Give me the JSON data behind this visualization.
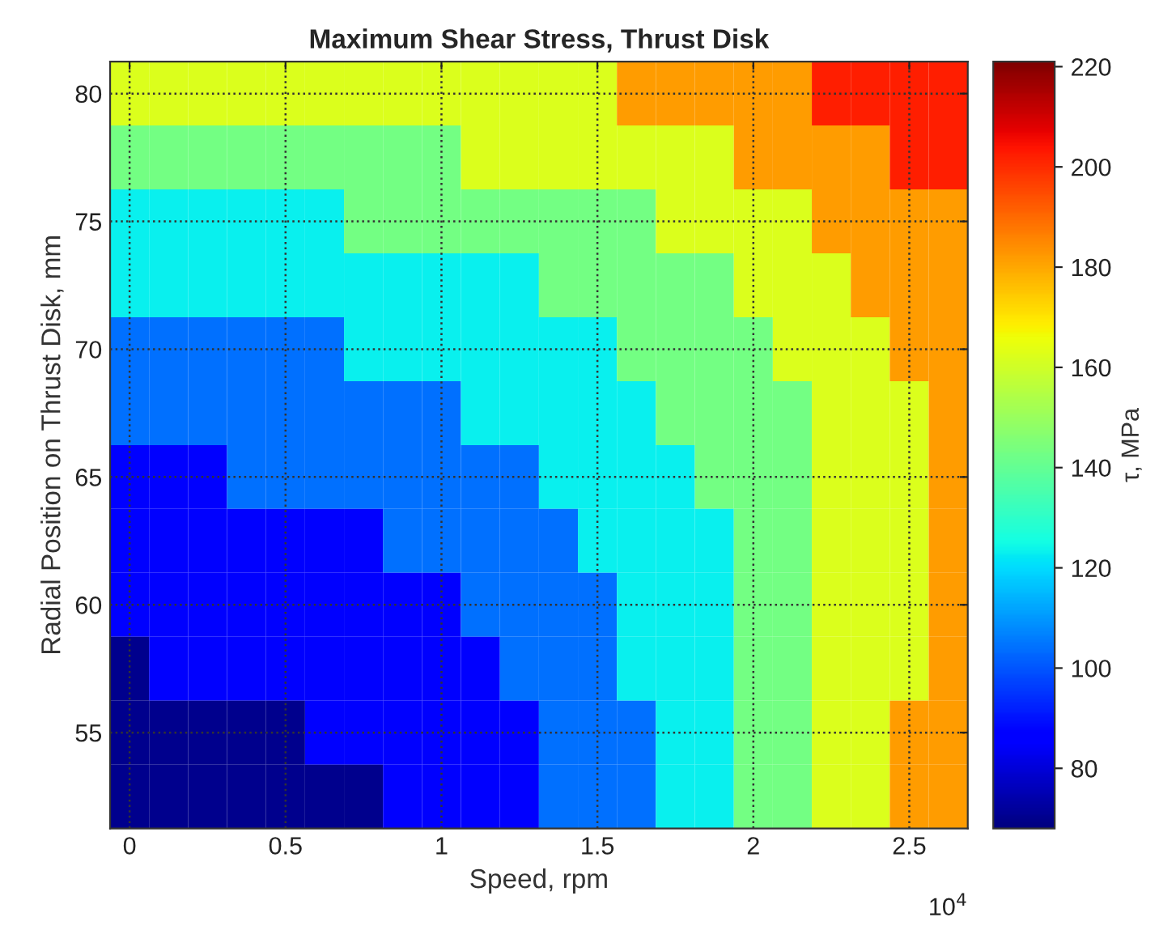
{
  "chart_data": {
    "type": "heatmap",
    "title": "Maximum Shear Stress, Thrust Disk",
    "xlabel": "Speed, rpm",
    "ylabel": "Radial Position on Thrust Disk, mm",
    "clabel": "τ, MPa",
    "categories": [
      "0",
      null,
      null,
      null,
      "0.5",
      null,
      null,
      null,
      "1",
      null,
      null,
      null,
      "1.5",
      null,
      null,
      null,
      "2",
      null,
      null,
      null,
      "2.5",
      null
    ],
    "y_categories": [
      "80",
      null,
      "75",
      null,
      "70",
      null,
      "65",
      null,
      "60",
      null,
      "55",
      null
    ],
    "cells": [
      [
        162,
        162,
        162,
        162,
        162,
        162,
        162,
        162,
        162,
        162,
        162,
        162,
        162,
        182,
        182,
        182,
        182,
        182,
        202,
        202,
        202,
        202
      ],
      [
        143,
        143,
        143,
        143,
        143,
        143,
        143,
        143,
        143,
        162,
        162,
        162,
        162,
        162,
        162,
        162,
        182,
        182,
        182,
        182,
        202,
        202
      ],
      [
        123,
        123,
        123,
        123,
        123,
        123,
        143,
        143,
        143,
        143,
        143,
        143,
        143,
        143,
        162,
        162,
        162,
        162,
        182,
        182,
        182,
        182
      ],
      [
        123,
        123,
        123,
        123,
        123,
        123,
        123,
        123,
        123,
        123,
        123,
        143,
        143,
        143,
        143,
        143,
        162,
        162,
        162,
        182,
        182,
        182
      ],
      [
        104,
        104,
        104,
        104,
        104,
        104,
        123,
        123,
        123,
        123,
        123,
        123,
        123,
        143,
        143,
        143,
        143,
        162,
        162,
        162,
        182,
        182
      ],
      [
        104,
        104,
        104,
        104,
        104,
        104,
        104,
        104,
        104,
        123,
        123,
        123,
        123,
        123,
        143,
        143,
        143,
        143,
        162,
        162,
        162,
        182
      ],
      [
        85,
        85,
        85,
        104,
        104,
        104,
        104,
        104,
        104,
        104,
        104,
        123,
        123,
        123,
        123,
        143,
        143,
        143,
        162,
        162,
        162,
        182
      ],
      [
        85,
        85,
        85,
        85,
        85,
        85,
        85,
        104,
        104,
        104,
        104,
        104,
        123,
        123,
        123,
        123,
        143,
        143,
        162,
        162,
        162,
        182
      ],
      [
        85,
        85,
        85,
        85,
        85,
        85,
        85,
        85,
        85,
        104,
        104,
        104,
        104,
        123,
        123,
        123,
        143,
        143,
        162,
        162,
        162,
        182
      ],
      [
        70,
        85,
        85,
        85,
        85,
        85,
        85,
        85,
        85,
        85,
        104,
        104,
        104,
        123,
        123,
        123,
        143,
        143,
        162,
        162,
        162,
        182
      ],
      [
        70,
        70,
        70,
        70,
        70,
        85,
        85,
        85,
        85,
        85,
        85,
        104,
        104,
        104,
        123,
        123,
        143,
        143,
        162,
        162,
        182,
        182
      ],
      [
        70,
        70,
        70,
        70,
        70,
        70,
        70,
        85,
        85,
        85,
        85,
        104,
        104,
        104,
        123,
        123,
        143,
        143,
        162,
        162,
        182,
        182
      ]
    ],
    "clim": [
      68,
      221
    ],
    "cticks": [
      80,
      100,
      120,
      140,
      160,
      180,
      200,
      220
    ],
    "grid": true,
    "annotations": [
      "10$^{4}$"
    ]
  }
}
